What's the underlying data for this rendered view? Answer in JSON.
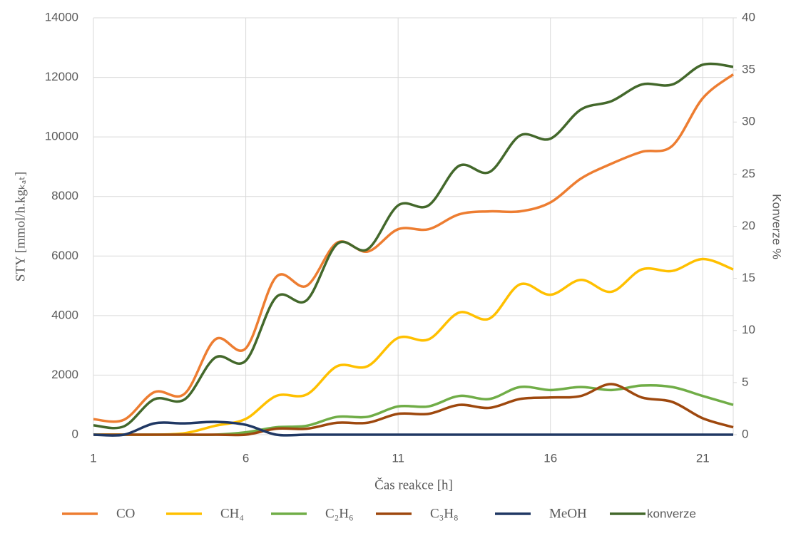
{
  "chart_data": {
    "type": "line",
    "x_label": "Čas reakce [h]",
    "y_label": "STY [mmol/h.kgₖₐₜ]",
    "y2_label": "Konverze %",
    "x": [
      1,
      2,
      3,
      4,
      5,
      6,
      7,
      8,
      9,
      10,
      11,
      12,
      13,
      14,
      15,
      16,
      17,
      18,
      19,
      20,
      21,
      22
    ],
    "xlim": [
      1,
      22
    ],
    "xticks": [
      1,
      6,
      11,
      16,
      21
    ],
    "ylim": [
      0,
      14000
    ],
    "yticks": [
      0,
      2000,
      4000,
      6000,
      8000,
      10000,
      12000,
      14000
    ],
    "y2lim": [
      0,
      40
    ],
    "y2ticks": [
      0,
      5,
      10,
      15,
      20,
      25,
      30,
      35,
      40
    ],
    "grid": true,
    "smooth": true,
    "legend": "bottom",
    "series": [
      {
        "name": "CO",
        "color": "#ed7d31",
        "values": [
          520,
          500,
          1430,
          1380,
          3200,
          2900,
          5300,
          5000,
          6450,
          6150,
          6900,
          6900,
          7400,
          7500,
          7500,
          7800,
          8600,
          9100,
          9500,
          9700,
          11300,
          12100
        ]
      },
      {
        "name": "CH₄",
        "color": "#ffc000",
        "values": [
          0,
          0,
          0,
          50,
          300,
          530,
          1300,
          1350,
          2300,
          2300,
          3250,
          3200,
          4100,
          3900,
          5050,
          4700,
          5200,
          4800,
          5550,
          5500,
          5900,
          5550
        ]
      },
      {
        "name": "C₂H₆",
        "color": "#70ad47",
        "values": [
          0,
          0,
          0,
          0,
          0,
          80,
          250,
          300,
          600,
          600,
          950,
          950,
          1300,
          1200,
          1600,
          1500,
          1600,
          1500,
          1650,
          1600,
          1300,
          1000
        ]
      },
      {
        "name": "C₃H₈",
        "color": "#9e480e",
        "values": [
          0,
          0,
          0,
          0,
          0,
          0,
          200,
          200,
          400,
          400,
          700,
          700,
          1000,
          900,
          1200,
          1250,
          1300,
          1700,
          1250,
          1100,
          550,
          250
        ]
      },
      {
        "name": "MeOH",
        "color": "#203864",
        "values": [
          0,
          0,
          380,
          380,
          430,
          330,
          0,
          0,
          0,
          0,
          0,
          0,
          0,
          0,
          0,
          0,
          0,
          0,
          0,
          0,
          0,
          0
        ]
      },
      {
        "name": "konverze",
        "color": "#43682b",
        "axis": "y2",
        "values": [
          0.9,
          0.8,
          3.4,
          3.4,
          7.4,
          7.1,
          13.2,
          12.9,
          18.3,
          17.8,
          22,
          22,
          25.8,
          25.2,
          28.7,
          28.4,
          31.2,
          32,
          33.6,
          33.6,
          35.5,
          35.3
        ]
      }
    ]
  }
}
